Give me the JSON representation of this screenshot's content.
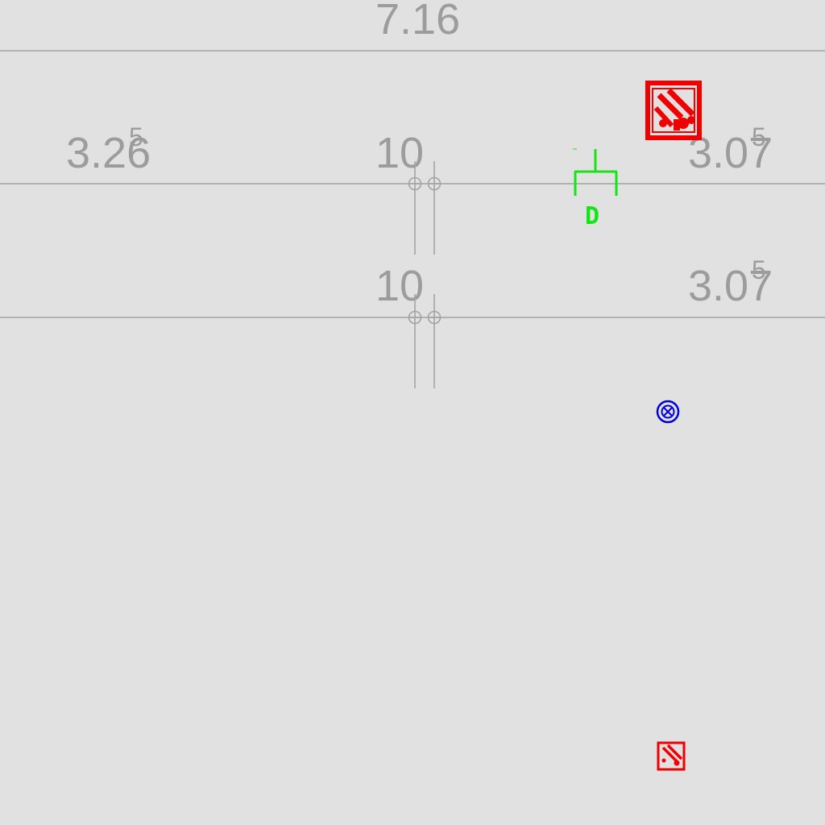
{
  "dimensions": {
    "top": "7.16",
    "left_upper": {
      "main": "3.26",
      "sup": "5"
    },
    "mid_upper": "10",
    "right_upper": {
      "main": "3.07",
      "sup": "5"
    },
    "mid_lower": "10",
    "right_lower": {
      "main": "3.07",
      "sup": "5"
    }
  },
  "symbols": {
    "outlet_label": "D",
    "outlet_color": "#14e614",
    "fire_color": "#f00000",
    "sensor_color": "#0000d8",
    "line_color": "#a3a3a3",
    "text_color": "#9c9c9c",
    "background": "#e1e1e1",
    "icons": [
      "fire-hose-cabinet-icon",
      "outlet-d-icon",
      "sensor-x-circle-icon",
      "small-fire-hose-cabinet-icon"
    ]
  }
}
